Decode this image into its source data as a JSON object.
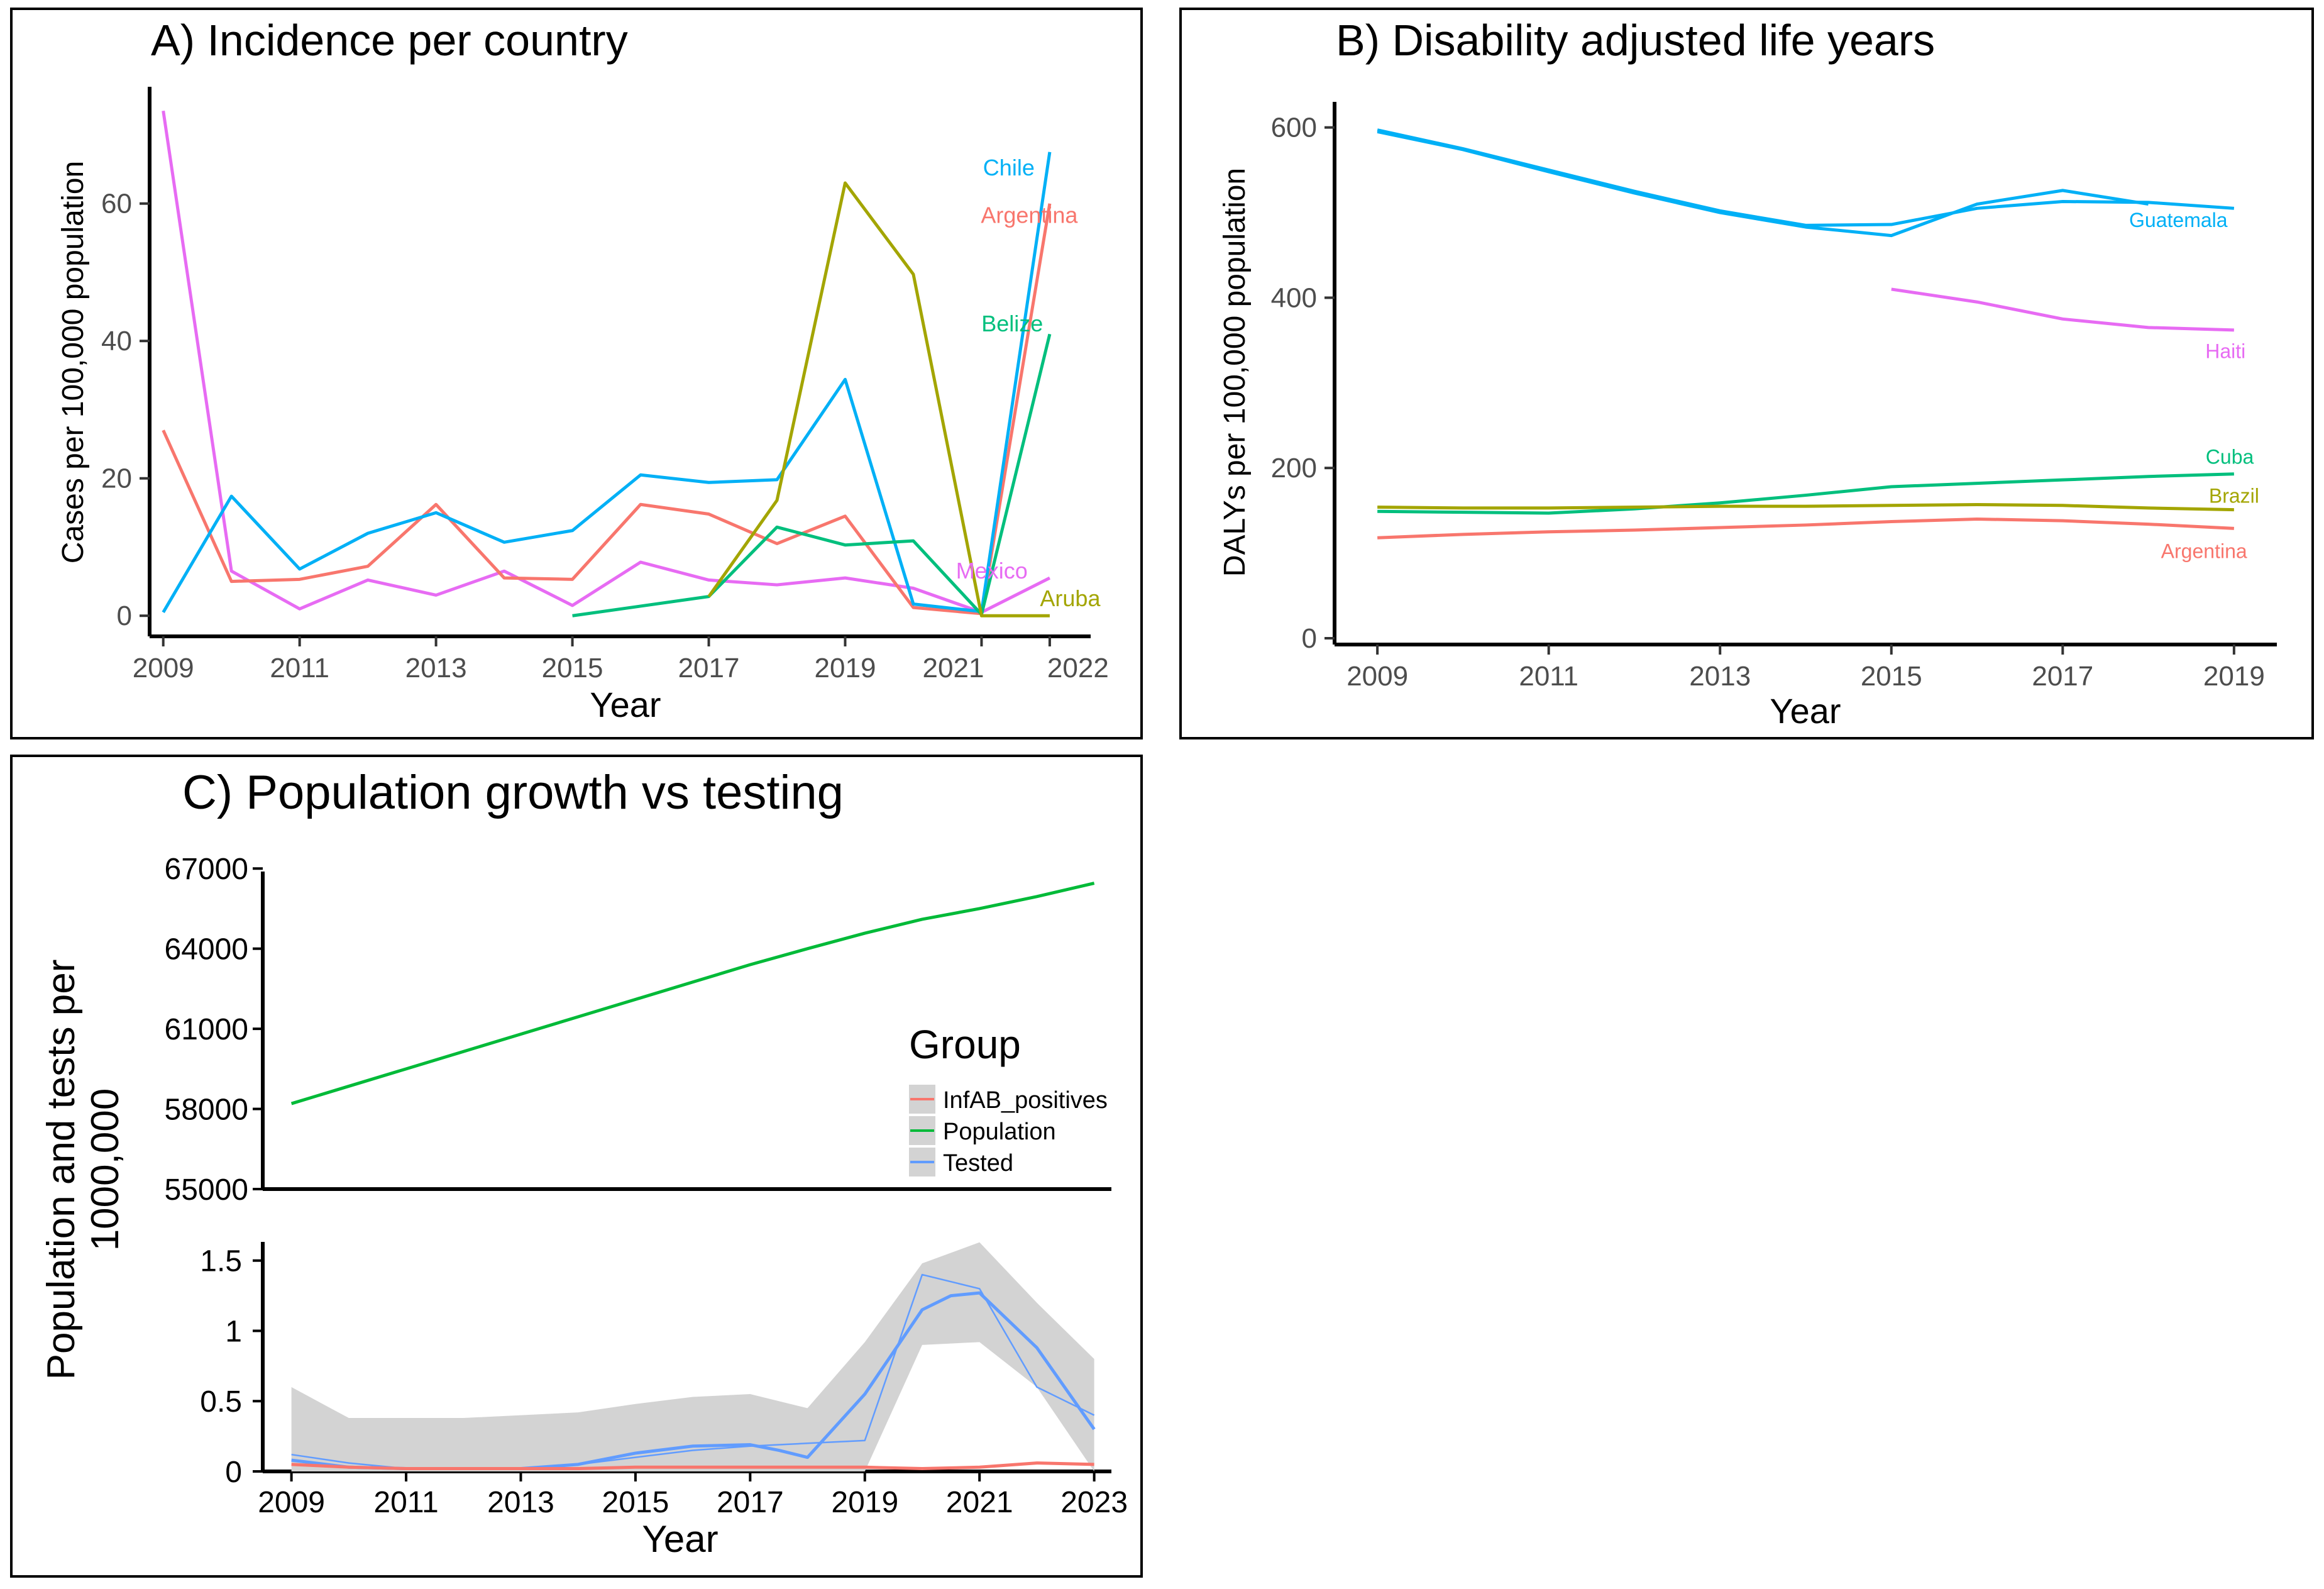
{
  "colors": {
    "argentina": "#F8766D",
    "chile": "#00B0F6",
    "belize": "#00BF7D",
    "mexico": "#E76BF3",
    "aruba": "#A3A500",
    "guatemala": "#00B0F6",
    "haiti": "#E76BF3",
    "cuba": "#00BF7D",
    "brazil": "#A3A500",
    "positives": "#F8766D",
    "population": "#00BA38",
    "tested": "#619CFF",
    "band": "#D3D3D3"
  },
  "chart_data": [
    {
      "type": "line",
      "title": "A) Incidence per country",
      "xlabel": "Year",
      "ylabel": "Cases per 100,000 population",
      "xlim": [
        2008.8,
        2022.6
      ],
      "ylim": [
        -3,
        77
      ],
      "x_ticks": [
        2009,
        2011,
        2013,
        2015,
        2017,
        2019,
        2021,
        2022
      ],
      "x_tick_labels": [
        "2009",
        "2011",
        "2013",
        "2015",
        "2017",
        "2019",
        "2021",
        "2022"
      ],
      "y_ticks": [
        0,
        20,
        40,
        60
      ],
      "y_tick_labels": [
        "0",
        "20",
        "40",
        "60"
      ],
      "series": [
        {
          "name": "Mexico",
          "color_key": "mexico",
          "x": [
            2009,
            2010,
            2011,
            2012,
            2013,
            2014,
            2015,
            2016,
            2017,
            2018,
            2019,
            2020,
            2021,
            2022
          ],
          "values": [
            73.5,
            6.5,
            1,
            5.2,
            3,
            6.5,
            1.5,
            7.8,
            5.2,
            4.5,
            5.5,
            4,
            0.5,
            5.5
          ]
        },
        {
          "name": "Argentina",
          "color_key": "argentina",
          "x": [
            2009,
            2010,
            2011,
            2012,
            2013,
            2014,
            2015,
            2016,
            2017,
            2018,
            2019,
            2020,
            2021,
            2022
          ],
          "values": [
            27,
            5,
            5.3,
            7.2,
            16.2,
            5.5,
            5.3,
            16.2,
            14.8,
            10.5,
            14.5,
            1.2,
            0.3,
            60
          ]
        },
        {
          "name": "Chile",
          "color_key": "chile",
          "x": [
            2009,
            2010,
            2011,
            2012,
            2013,
            2014,
            2015,
            2016,
            2017,
            2018,
            2019,
            2020,
            2021,
            2022
          ],
          "values": [
            0.5,
            17.4,
            6.8,
            12,
            15,
            10.7,
            12.4,
            20.5,
            19.4,
            19.8,
            34.4,
            1.7,
            0.6,
            67.5
          ]
        },
        {
          "name": "Belize",
          "color_key": "belize",
          "x": [
            2015,
            2017,
            2018,
            2019,
            2020,
            2021,
            2022
          ],
          "values": [
            0,
            2.8,
            12.9,
            10.3,
            10.9,
            0.2,
            41
          ]
        },
        {
          "name": "Aruba",
          "color_key": "aruba",
          "x": [
            2017,
            2018,
            2019,
            2020,
            2021,
            2022
          ],
          "values": [
            2.8,
            16.8,
            63,
            49.7,
            0,
            0
          ]
        }
      ],
      "labels": [
        {
          "text": "Chile",
          "color_key": "chile",
          "x": 2021.4,
          "y": 65.2
        },
        {
          "text": "Argentina",
          "color_key": "argentina",
          "x": 2021.7,
          "y": 58.3
        },
        {
          "text": "Belize",
          "color_key": "belize",
          "x": 2021.45,
          "y": 42.5
        },
        {
          "text": "Mexico",
          "color_key": "mexico",
          "x": 2021.15,
          "y": 6.5
        },
        {
          "text": "Aruba",
          "color_key": "aruba",
          "x": 2022.3,
          "y": 2.5
        }
      ]
    },
    {
      "type": "line",
      "title": "B) Disability adjusted life years",
      "xlabel": "Year",
      "ylabel": "DALYs per 100,000 population",
      "xlim": [
        2008.5,
        2019.5
      ],
      "ylim": [
        0,
        650
      ],
      "x_ticks": [
        2009,
        2011,
        2013,
        2015,
        2017,
        2019
      ],
      "x_tick_labels": [
        "2009",
        "2011",
        "2013",
        "2015",
        "2017",
        "2019"
      ],
      "y_ticks": [
        0,
        200,
        400,
        600
      ],
      "y_tick_labels": [
        "0",
        "200",
        "400",
        "600"
      ],
      "series": [
        {
          "name": "Guatemala",
          "color_key": "guatemala",
          "x": [
            2009,
            2010,
            2011,
            2012,
            2013,
            2014,
            2015,
            2016,
            2017,
            2018,
            2019
          ],
          "values": [
            597,
            575,
            550,
            525,
            502,
            485,
            486,
            505,
            513,
            512,
            505
          ]
        },
        {
          "name": "Guatemala (2)",
          "color_key": "guatemala",
          "x": [
            2009,
            2010,
            2011,
            2012,
            2013,
            2014,
            2015,
            2016,
            2017,
            2018
          ],
          "values": [
            595,
            574,
            548,
            523,
            500,
            483,
            473,
            510,
            526,
            510
          ]
        },
        {
          "name": "Haiti",
          "color_key": "haiti",
          "x": [
            2015,
            2016,
            2017,
            2018,
            2019
          ],
          "values": [
            410,
            395,
            375,
            365,
            362
          ]
        },
        {
          "name": "Cuba",
          "color_key": "cuba",
          "x": [
            2009,
            2010,
            2011,
            2012,
            2013,
            2014,
            2015,
            2016,
            2017,
            2018,
            2019
          ],
          "values": [
            149,
            148,
            147,
            152,
            159,
            168,
            178,
            182,
            186,
            190,
            193
          ]
        },
        {
          "name": "Brazil",
          "color_key": "brazil",
          "x": [
            2009,
            2010,
            2011,
            2012,
            2013,
            2014,
            2015,
            2016,
            2017,
            2018,
            2019
          ],
          "values": [
            154,
            153,
            153,
            154,
            155,
            155,
            156,
            157,
            156,
            153,
            151
          ]
        },
        {
          "name": "Argentina",
          "color_key": "argentina",
          "x": [
            2009,
            2010,
            2011,
            2012,
            2013,
            2014,
            2015,
            2016,
            2017,
            2018,
            2019
          ],
          "values": [
            118,
            122,
            125,
            127,
            130,
            133,
            137,
            140,
            138,
            134,
            129
          ]
        }
      ],
      "labels": [
        {
          "text": "Guatemala",
          "color_key": "guatemala",
          "x": 2018.35,
          "y": 492
        },
        {
          "text": "Haiti",
          "color_key": "haiti",
          "x": 2018.9,
          "y": 338
        },
        {
          "text": "Cuba",
          "color_key": "cuba",
          "x": 2018.95,
          "y": 214
        },
        {
          "text": "Brazil",
          "color_key": "brazil",
          "x": 2019.0,
          "y": 168
        },
        {
          "text": "Argentina",
          "color_key": "argentina",
          "x": 2018.65,
          "y": 103
        }
      ]
    },
    {
      "type": "line",
      "title": "C) Population growth vs testing",
      "xlabel": "Year",
      "ylabel": "Population and tests per 1000,000",
      "xlim": [
        2008.5,
        2023.3
      ],
      "upper_panel": {
        "ylim": [
          55000,
          67500
        ],
        "y_ticks": [
          55000,
          58000,
          61000,
          64000,
          67000
        ],
        "y_tick_labels": [
          "55000",
          "58000",
          "61000",
          "64000",
          "67000"
        ],
        "series": [
          {
            "name": "Population",
            "color_key": "population",
            "x": [
              2009,
              2010,
              2011,
              2012,
              2013,
              2014,
              2015,
              2016,
              2017,
              2018,
              2019,
              2020,
              2021,
              2022,
              2023
            ],
            "values": [
              58200,
              58850,
              59500,
              60150,
              60800,
              61450,
              62100,
              62750,
              63400,
              64000,
              64580,
              65100,
              65500,
              65950,
              66450
            ]
          }
        ]
      },
      "lower_panel": {
        "ylim": [
          0,
          1.7
        ],
        "y_ticks": [
          0,
          0.5,
          1,
          1.5
        ],
        "y_tick_labels": [
          "0",
          "0.5",
          "1",
          "1.5"
        ],
        "series": [
          {
            "name": "Tested (raw)",
            "color_key": "tested",
            "x": [
              2009,
              2010,
              2011,
              2012,
              2013,
              2014,
              2015,
              2016,
              2017,
              2018,
              2019,
              2020,
              2021,
              2022,
              2023
            ],
            "values": [
              0.12,
              0.06,
              0.02,
              0.02,
              0.02,
              0.05,
              0.1,
              0.15,
              0.18,
              0.2,
              0.22,
              1.4,
              1.3,
              0.6,
              0.4
            ]
          },
          {
            "name": "Tested (smooth)",
            "color_key": "tested",
            "x": [
              2009,
              2010,
              2011,
              2012,
              2013,
              2014,
              2015,
              2016,
              2017,
              2017.5,
              2018,
              2019,
              2020,
              2020.5,
              2021,
              2022,
              2023
            ],
            "values": [
              0.08,
              0.03,
              0.02,
              0.02,
              0.02,
              0.05,
              0.13,
              0.18,
              0.19,
              0.15,
              0.1,
              0.55,
              1.15,
              1.25,
              1.27,
              0.88,
              0.3
            ]
          },
          {
            "name": "InfAB_positives",
            "color_key": "positives",
            "x": [
              2009,
              2010,
              2011,
              2012,
              2013,
              2014,
              2015,
              2016,
              2017,
              2018,
              2019,
              2020,
              2021,
              2022,
              2023
            ],
            "values": [
              0.05,
              0.03,
              0.02,
              0.02,
              0.02,
              0.02,
              0.03,
              0.03,
              0.03,
              0.03,
              0.03,
              0.02,
              0.03,
              0.06,
              0.05
            ]
          }
        ],
        "band": {
          "x": [
            2009,
            2010,
            2011,
            2012,
            2013,
            2014,
            2015,
            2016,
            2017,
            2018,
            2019,
            2020,
            2021,
            2022,
            2023
          ],
          "lower": [
            0,
            0,
            0,
            0,
            0,
            0,
            0,
            0,
            0,
            0,
            0,
            0.9,
            0.92,
            0.6,
            0
          ],
          "upper": [
            0.6,
            0.38,
            0.38,
            0.38,
            0.4,
            0.42,
            0.48,
            0.53,
            0.55,
            0.45,
            0.92,
            1.48,
            1.63,
            1.2,
            0.8
          ]
        }
      },
      "legend": {
        "title": "Group",
        "position": "right",
        "entries": [
          {
            "label": "InfAB_positives",
            "color_key": "positives"
          },
          {
            "label": "Population",
            "color_key": "population"
          },
          {
            "label": "Tested",
            "color_key": "tested"
          }
        ]
      }
    }
  ]
}
